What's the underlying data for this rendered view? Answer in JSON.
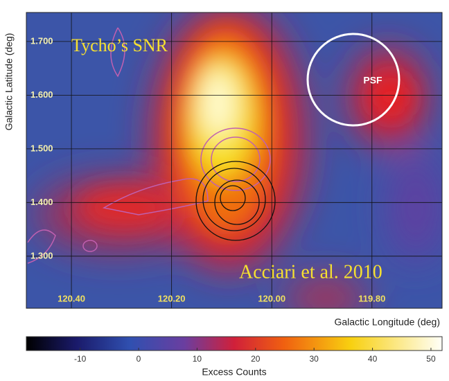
{
  "chart_data": {
    "type": "heatmap",
    "x_label": "Galactic Longitude (deg)",
    "y_label": "Galactic Latitude (deg)",
    "xlim": [
      120.49,
      119.66
    ],
    "ylim": [
      1.203,
      1.754
    ],
    "xticks": [
      {
        "value": 120.4,
        "label": "120.40"
      },
      {
        "value": 120.2,
        "label": "120.20"
      },
      {
        "value": 120.0,
        "label": "120.00"
      },
      {
        "value": 119.8,
        "label": "119.80"
      }
    ],
    "yticks": [
      {
        "value": 1.3,
        "label": "1.300"
      },
      {
        "value": 1.4,
        "label": "1.400"
      },
      {
        "value": 1.5,
        "label": "1.500"
      },
      {
        "value": 1.6,
        "label": "1.600"
      },
      {
        "value": 1.7,
        "label": "1.700"
      }
    ],
    "grid": true,
    "annotations": [
      "Tycho’s SNR",
      "Acciari et al. 2010",
      "PSF"
    ],
    "colorbar": {
      "label": "Excess Counts",
      "lim": [
        -19.2,
        51.9
      ],
      "ticks": [
        -10,
        0,
        10,
        20,
        30,
        40,
        50
      ]
    }
  }
}
